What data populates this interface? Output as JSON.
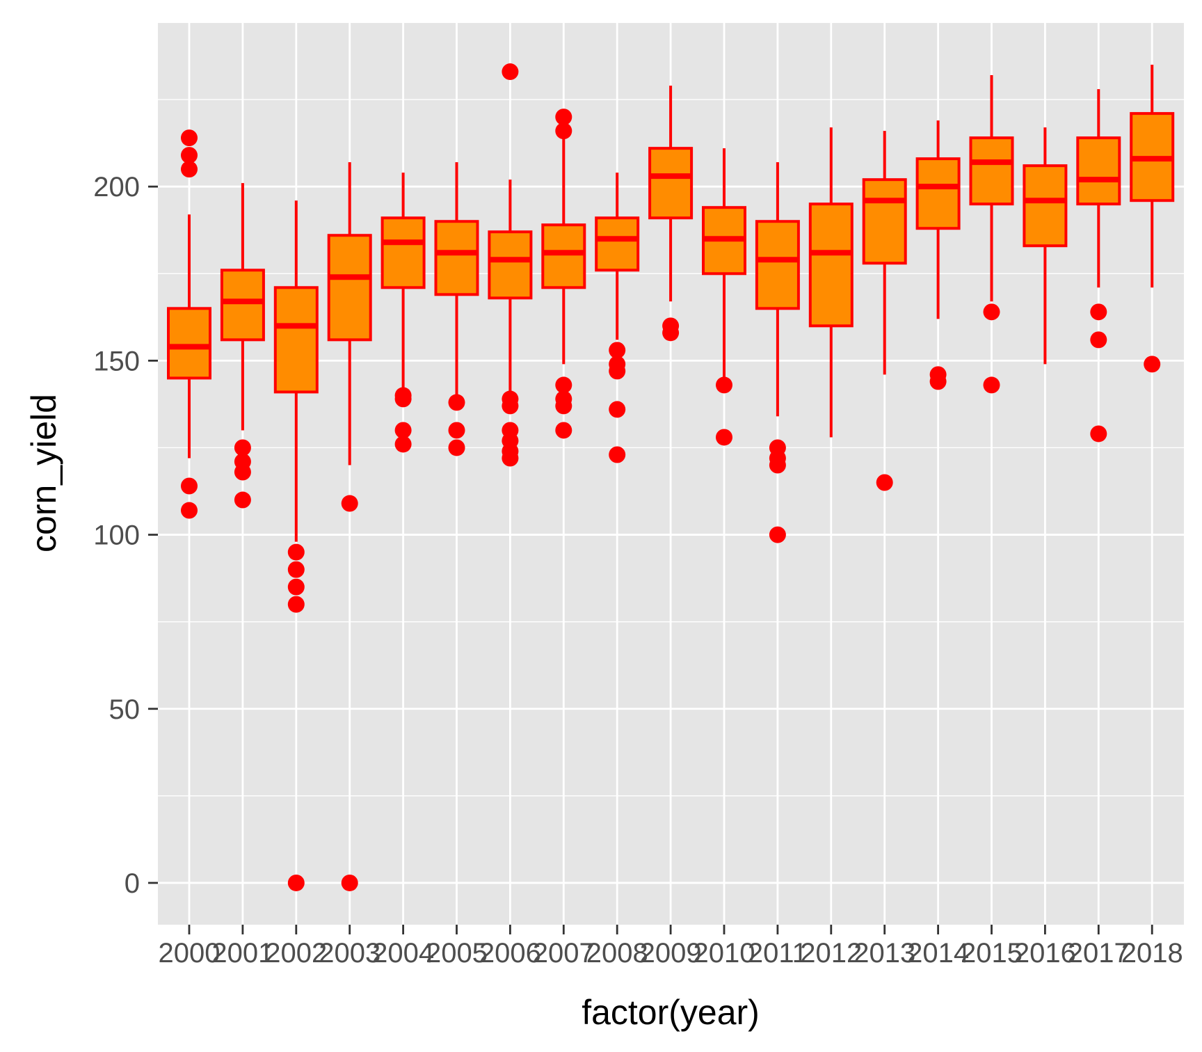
{
  "chart_data": {
    "type": "boxplot",
    "xlabel": "factor(year)",
    "ylabel": "corn_yield",
    "ylim": [
      -12,
      247
    ],
    "y_ticks": [
      0,
      50,
      100,
      150,
      200
    ],
    "y_minor_ticks": [
      25,
      75,
      125,
      175,
      225
    ],
    "grid": true,
    "legend": "none",
    "colors": {
      "fill": "#ff8c00",
      "stroke": "#ff0000",
      "panel": "#e5e5e5",
      "grid": "#ffffff",
      "tick": "#333333"
    },
    "categories": [
      "2000",
      "2001",
      "2002",
      "2003",
      "2004",
      "2005",
      "2006",
      "2007",
      "2008",
      "2009",
      "2010",
      "2011",
      "2012",
      "2013",
      "2014",
      "2015",
      "2016",
      "2017",
      "2018"
    ],
    "boxes": [
      {
        "year": "2000",
        "low": 122,
        "q1": 145,
        "median": 154,
        "q3": 165,
        "high": 192,
        "outliers": [
          214,
          209,
          205,
          114,
          107
        ]
      },
      {
        "year": "2001",
        "low": 130,
        "q1": 156,
        "median": 167,
        "q3": 176,
        "high": 201,
        "outliers": [
          125,
          121,
          118,
          110
        ]
      },
      {
        "year": "2002",
        "low": 98,
        "q1": 141,
        "median": 160,
        "q3": 171,
        "high": 196,
        "outliers": [
          95,
          90,
          85,
          80,
          0
        ]
      },
      {
        "year": "2003",
        "low": 120,
        "q1": 156,
        "median": 174,
        "q3": 186,
        "high": 207,
        "outliers": [
          109,
          0
        ]
      },
      {
        "year": "2004",
        "low": 141,
        "q1": 171,
        "median": 184,
        "q3": 191,
        "high": 204,
        "outliers": [
          140,
          139,
          130,
          126
        ]
      },
      {
        "year": "2005",
        "low": 139,
        "q1": 169,
        "median": 181,
        "q3": 190,
        "high": 207,
        "outliers": [
          138,
          130,
          125
        ]
      },
      {
        "year": "2006",
        "low": 140,
        "q1": 168,
        "median": 179,
        "q3": 187,
        "high": 202,
        "outliers": [
          233,
          139,
          137,
          130,
          127,
          124,
          122
        ]
      },
      {
        "year": "2007",
        "low": 149,
        "q1": 171,
        "median": 181,
        "q3": 189,
        "high": 214,
        "outliers": [
          220,
          216,
          143,
          139,
          137,
          130
        ]
      },
      {
        "year": "2008",
        "low": 156,
        "q1": 176,
        "median": 185,
        "q3": 191,
        "high": 204,
        "outliers": [
          153,
          149,
          147,
          136,
          123
        ]
      },
      {
        "year": "2009",
        "low": 167,
        "q1": 191,
        "median": 203,
        "q3": 211,
        "high": 229,
        "outliers": [
          160,
          158
        ]
      },
      {
        "year": "2010",
        "low": 145,
        "q1": 175,
        "median": 185,
        "q3": 194,
        "high": 211,
        "outliers": [
          143,
          128
        ]
      },
      {
        "year": "2011",
        "low": 134,
        "q1": 165,
        "median": 179,
        "q3": 190,
        "high": 207,
        "outliers": [
          125,
          122,
          120,
          100
        ]
      },
      {
        "year": "2012",
        "low": 128,
        "q1": 160,
        "median": 181,
        "q3": 195,
        "high": 217,
        "outliers": []
      },
      {
        "year": "2013",
        "low": 146,
        "q1": 178,
        "median": 196,
        "q3": 202,
        "high": 216,
        "outliers": [
          115
        ]
      },
      {
        "year": "2014",
        "low": 162,
        "q1": 188,
        "median": 200,
        "q3": 208,
        "high": 219,
        "outliers": [
          146,
          144
        ]
      },
      {
        "year": "2015",
        "low": 167,
        "q1": 195,
        "median": 207,
        "q3": 214,
        "high": 232,
        "outliers": [
          164,
          143
        ]
      },
      {
        "year": "2016",
        "low": 149,
        "q1": 183,
        "median": 196,
        "q3": 206,
        "high": 217,
        "outliers": []
      },
      {
        "year": "2017",
        "low": 171,
        "q1": 195,
        "median": 202,
        "q3": 214,
        "high": 228,
        "outliers": [
          164,
          156,
          129
        ]
      },
      {
        "year": "2018",
        "low": 171,
        "q1": 196,
        "median": 208,
        "q3": 221,
        "high": 235,
        "outliers": [
          149
        ]
      }
    ]
  }
}
